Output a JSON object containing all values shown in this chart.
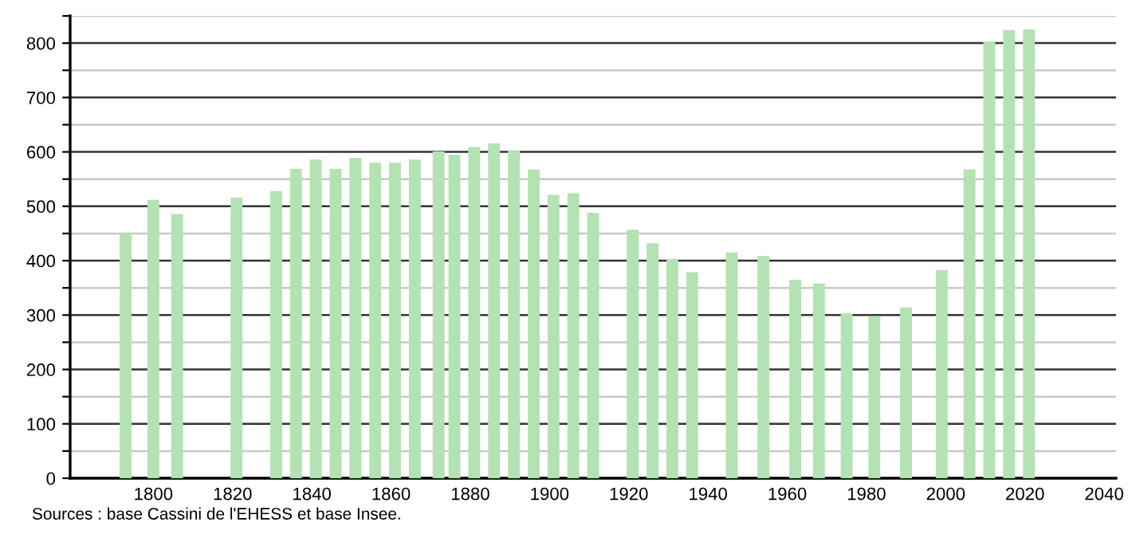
{
  "chart_data": {
    "type": "bar",
    "x": [
      1793,
      1800,
      1806,
      1821,
      1831,
      1836,
      1841,
      1846,
      1851,
      1856,
      1861,
      1866,
      1872,
      1876,
      1881,
      1886,
      1891,
      1896,
      1901,
      1906,
      1911,
      1921,
      1926,
      1931,
      1936,
      1946,
      1954,
      1962,
      1968,
      1975,
      1982,
      1990,
      1999,
      2006,
      2011,
      2016,
      2021
    ],
    "values": [
      450,
      512,
      486,
      516,
      528,
      569,
      586,
      569,
      589,
      580,
      580,
      586,
      601,
      595,
      609,
      616,
      603,
      568,
      521,
      524,
      488,
      457,
      432,
      403,
      379,
      415,
      409,
      365,
      358,
      303,
      298,
      314,
      383,
      568,
      803,
      824,
      825
    ],
    "color": "#b3e2b3",
    "xlim": [
      1779,
      2043
    ],
    "xticks": [
      1800,
      1820,
      1840,
      1860,
      1880,
      1900,
      1920,
      1940,
      1960,
      1980,
      2000,
      2020,
      2040
    ],
    "ylim": [
      0,
      850
    ],
    "yticks": [
      0,
      {
        "value": 50,
        "label": null
      },
      100,
      {
        "value": 150,
        "label": null
      },
      200,
      {
        "value": 250,
        "label": null
      },
      300,
      {
        "value": 350,
        "label": null
      },
      400,
      {
        "value": 450,
        "label": null
      },
      500,
      {
        "value": 550,
        "label": null
      },
      600,
      {
        "value": 650,
        "label": null
      },
      700,
      {
        "value": 750,
        "label": null
      },
      800,
      {
        "value": 850,
        "label": null
      }
    ],
    "grid": "y",
    "annotations": [
      "Sources : base Cassini de l'EHESS et base Insee."
    ]
  }
}
